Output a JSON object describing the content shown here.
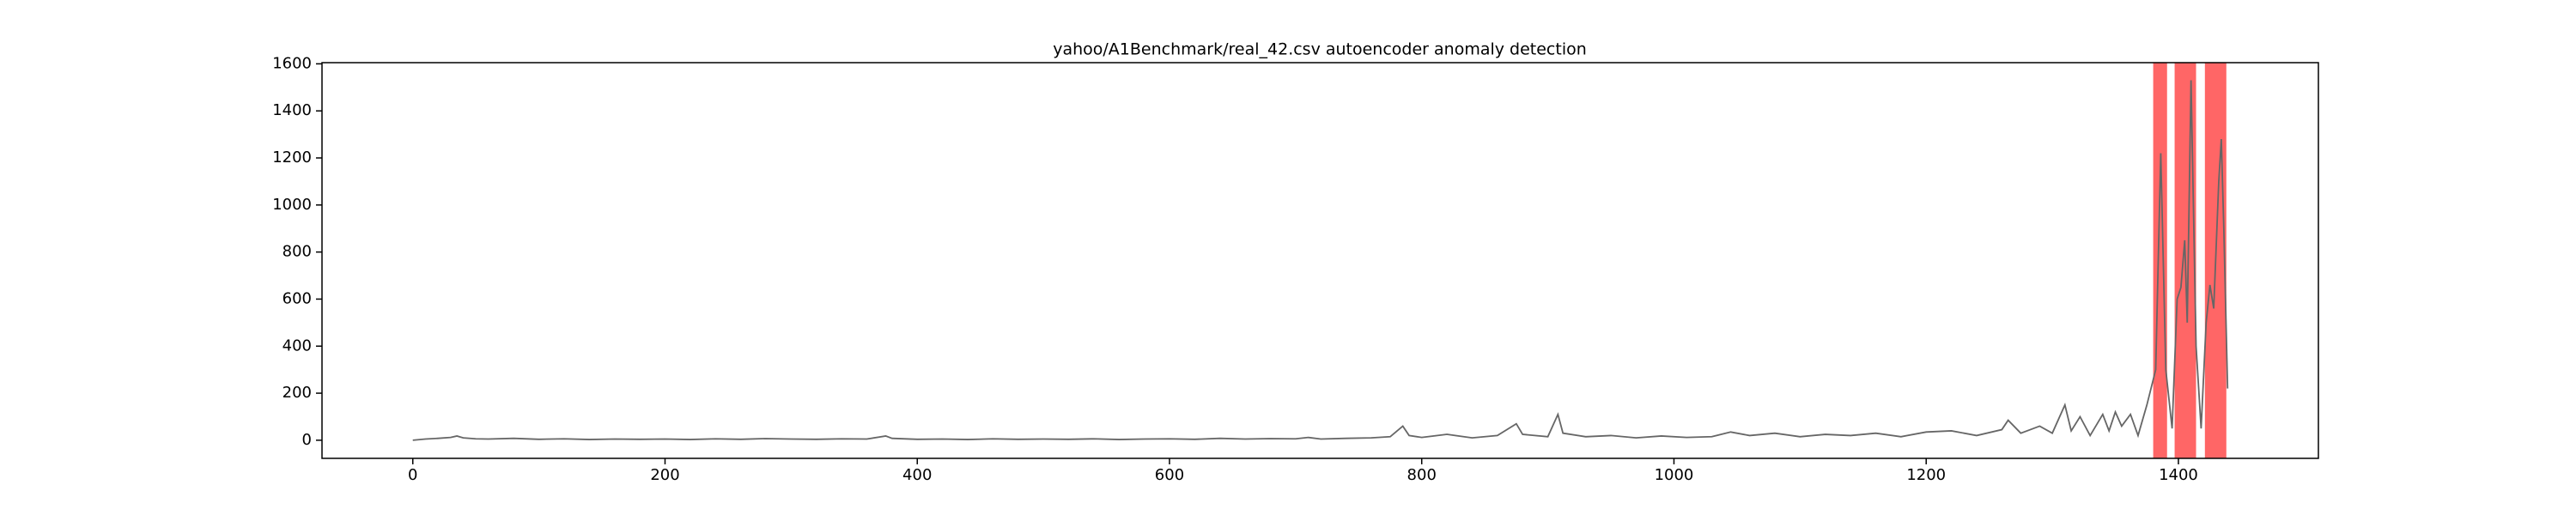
{
  "chart_data": {
    "type": "line",
    "title": "yahoo/A1Benchmark/real_42.csv autoencoder anomaly detection",
    "x": [
      0,
      10,
      20,
      30,
      35,
      40,
      50,
      60,
      80,
      100,
      120,
      140,
      160,
      180,
      200,
      220,
      240,
      260,
      280,
      300,
      320,
      340,
      360,
      375,
      380,
      400,
      420,
      440,
      460,
      480,
      500,
      520,
      540,
      560,
      580,
      600,
      620,
      640,
      660,
      680,
      700,
      710,
      720,
      740,
      760,
      775,
      785,
      790,
      800,
      820,
      840,
      860,
      875,
      880,
      900,
      908,
      912,
      930,
      950,
      970,
      990,
      1010,
      1030,
      1045,
      1060,
      1080,
      1100,
      1120,
      1140,
      1160,
      1180,
      1200,
      1220,
      1240,
      1260,
      1265,
      1275,
      1290,
      1300,
      1310,
      1315,
      1322,
      1330,
      1340,
      1345,
      1350,
      1355,
      1362,
      1368,
      1375,
      1382,
      1386,
      1390,
      1395,
      1399,
      1402,
      1405,
      1407,
      1410,
      1414,
      1418,
      1422,
      1425,
      1428,
      1432,
      1434,
      1436,
      1439
    ],
    "series": [
      {
        "color": "#666666",
        "values": [
          0,
          5,
          8,
          12,
          18,
          10,
          6,
          5,
          8,
          4,
          6,
          3,
          5,
          4,
          5,
          3,
          6,
          4,
          7,
          5,
          4,
          6,
          5,
          18,
          8,
          4,
          5,
          3,
          6,
          4,
          5,
          4,
          6,
          3,
          5,
          6,
          4,
          8,
          5,
          7,
          6,
          12,
          5,
          8,
          10,
          15,
          60,
          20,
          12,
          25,
          10,
          20,
          70,
          25,
          15,
          110,
          30,
          15,
          20,
          10,
          18,
          12,
          15,
          35,
          20,
          30,
          15,
          25,
          20,
          30,
          15,
          35,
          40,
          20,
          45,
          85,
          30,
          60,
          30,
          150,
          40,
          100,
          20,
          110,
          40,
          120,
          60,
          110,
          20,
          150,
          300,
          1220,
          300,
          50,
          600,
          650,
          850,
          500,
          1530,
          400,
          50,
          500,
          660,
          560,
          1100,
          1280,
          900,
          220
        ]
      }
    ],
    "anomaly_spans": [
      [
        1380,
        1391
      ],
      [
        1397,
        1414
      ],
      [
        1421,
        1438
      ]
    ],
    "span_color": "#ff0000",
    "xlim": [
      -72,
      1511
    ],
    "ylim": [
      -77,
      1605
    ],
    "xticks": [
      0,
      200,
      400,
      600,
      800,
      1000,
      1200,
      1400
    ],
    "yticks": [
      0,
      200,
      400,
      600,
      800,
      1000,
      1200,
      1400,
      1600
    ]
  }
}
